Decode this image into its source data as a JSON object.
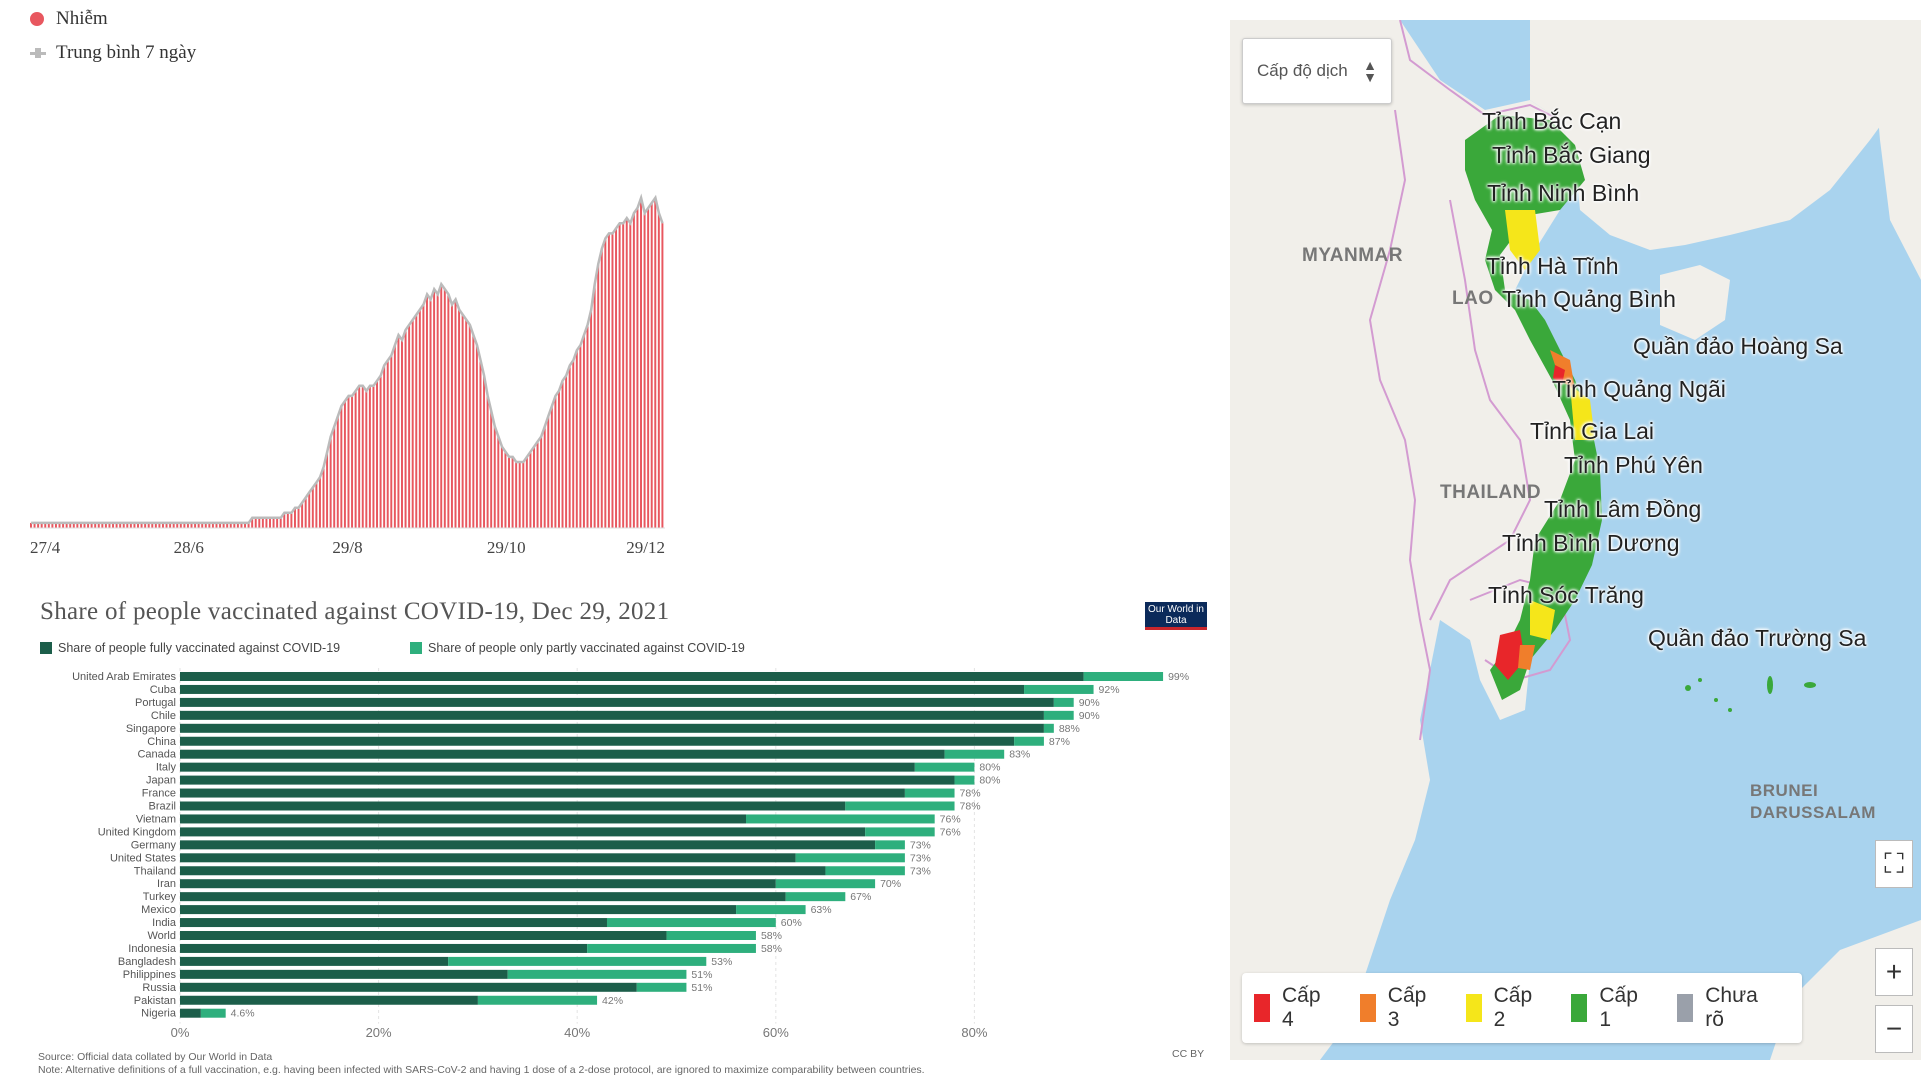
{
  "cases_chart": {
    "legend": {
      "infected": "Nhiễm",
      "avg7": "Trung bình 7 ngày"
    },
    "x_ticks": [
      "27/4",
      "28/6",
      "29/8",
      "29/10",
      "29/12"
    ],
    "colors": {
      "bar": "#e8575f",
      "avg": "#bbbbbb"
    }
  },
  "vaccine_chart": {
    "title": "Share of people vaccinated against COVID-19, Dec 29, 2021",
    "logo": "Our World in Data",
    "legend": {
      "full": "Share of people fully vaccinated against COVID-19",
      "partial": "Share of people only partly vaccinated against COVID-19"
    },
    "source": "Source: Official data collated by Our World in Data",
    "note": "Note: Alternative definitions of a full vaccination, e.g. having been infected with SARS-CoV-2 and having 1 dose of a 2-dose protocol, are ignored to maximize comparability between countries.",
    "license": "CC BY",
    "colors": {
      "full": "#1c5e4a",
      "partial": "#2eaf7d"
    }
  },
  "map": {
    "select_label": "Cấp độ dịch",
    "provinces": [
      "Tỉnh Bắc Cạn",
      "Tỉnh Bắc Giang",
      "Tỉnh Ninh Bình",
      "Tỉnh Hà Tĩnh",
      "Tỉnh Quảng Bình",
      "Quần đảo Hoàng Sa",
      "Tỉnh Quảng Ngãi",
      "Tỉnh Gia Lai",
      "Tỉnh Phú Yên",
      "Tỉnh Lâm Đồng",
      "Tỉnh Bình Dương",
      "Tỉnh Sóc Trăng",
      "Quần đảo Trường Sa"
    ],
    "countries": {
      "myanmar": "MYANMAR",
      "thailand": "THAILAND",
      "lao": "LAO",
      "brunei": "BRUNEI DARUSSALAM"
    },
    "legend": [
      {
        "label": "Cấp 4",
        "color": "#e8262a"
      },
      {
        "label": "Cấp 3",
        "color": "#f07e2b"
      },
      {
        "label": "Cấp 2",
        "color": "#f5e61a"
      },
      {
        "label": "Cấp 1",
        "color": "#3aa83a"
      },
      {
        "label": "Chưa rõ",
        "color": "#9aa0aa"
      }
    ],
    "controls": {
      "fullscreen": "⛶",
      "zoom_in": "+",
      "zoom_out": "−"
    }
  },
  "chart_data": [
    {
      "type": "bar",
      "title": "",
      "legend": [
        "Nhiễm",
        "Trung bình 7 ngày"
      ],
      "x_ticks": [
        "27/4",
        "28/6",
        "29/8",
        "29/10",
        "29/12"
      ],
      "ylim": [
        0,
        100
      ],
      "series": [
        {
          "name": "Nhiễm",
          "values": [
            1,
            1,
            1,
            1,
            1,
            1,
            1,
            1,
            1,
            1,
            1,
            1,
            1,
            1,
            1,
            1,
            1,
            1,
            1,
            1,
            1,
            1,
            1,
            1,
            1,
            1,
            1,
            1,
            1,
            1,
            1,
            1,
            1,
            1,
            1,
            1,
            1,
            1,
            1,
            1,
            1,
            1,
            1,
            1,
            1,
            1,
            1,
            1,
            1,
            1,
            1,
            1,
            1,
            1,
            1,
            1,
            1,
            1,
            1,
            1,
            1,
            1,
            2,
            2,
            2,
            2,
            2,
            2,
            2,
            2,
            2,
            3,
            3,
            3,
            4,
            4,
            5,
            6,
            7,
            8,
            9,
            10,
            12,
            15,
            18,
            20,
            22,
            24,
            25,
            26,
            26,
            27,
            28,
            28,
            27,
            28,
            28,
            29,
            30,
            32,
            33,
            34,
            36,
            38,
            37,
            39,
            40,
            41,
            42,
            43,
            44,
            46,
            45,
            47,
            46,
            48,
            47,
            46,
            44,
            45,
            43,
            42,
            41,
            40,
            38,
            36,
            33,
            30,
            26,
            23,
            20,
            18,
            16,
            15,
            14,
            14,
            13,
            13,
            13,
            14,
            15,
            16,
            17,
            18,
            20,
            22,
            24,
            26,
            27,
            29,
            30,
            32,
            33,
            35,
            36,
            38,
            40,
            43,
            48,
            52,
            55,
            57,
            58,
            58,
            59,
            60,
            60,
            61,
            60,
            62,
            63,
            65,
            62,
            63,
            64,
            65,
            62,
            60
          ]
        },
        {
          "name": "Trung bình 7 ngày",
          "values": [
            1,
            1,
            1,
            1,
            1,
            1,
            1,
            1,
            1,
            1,
            1,
            1,
            1,
            1,
            1,
            1,
            1,
            1,
            1,
            1,
            1,
            1,
            1,
            1,
            1,
            1,
            1,
            1,
            1,
            1,
            1,
            1,
            1,
            1,
            1,
            1,
            1,
            1,
            1,
            1,
            1,
            1,
            1,
            1,
            1,
            1,
            1,
            1,
            1,
            1,
            1,
            1,
            1,
            1,
            1,
            1,
            1,
            1,
            1,
            1,
            1,
            1,
            2,
            2,
            2,
            2,
            2,
            2,
            2,
            2,
            2,
            3,
            3,
            3,
            4,
            4,
            5,
            6,
            7,
            8,
            9,
            10,
            12,
            15,
            18,
            20,
            22,
            24,
            25,
            26,
            26,
            27,
            28,
            28,
            27,
            28,
            28,
            29,
            30,
            32,
            33,
            34,
            36,
            38,
            37,
            39,
            40,
            41,
            42,
            43,
            44,
            46,
            45,
            47,
            46,
            48,
            47,
            46,
            44,
            45,
            43,
            42,
            41,
            40,
            38,
            36,
            33,
            30,
            26,
            23,
            20,
            18,
            16,
            15,
            14,
            14,
            13,
            13,
            13,
            14,
            15,
            16,
            17,
            18,
            20,
            22,
            24,
            26,
            27,
            29,
            30,
            32,
            33,
            35,
            36,
            38,
            40,
            43,
            48,
            52,
            55,
            57,
            58,
            58,
            59,
            60,
            60,
            61,
            60,
            62,
            63,
            65,
            62,
            63,
            64,
            65,
            62,
            60
          ]
        }
      ]
    },
    {
      "type": "bar",
      "title": "Share of people vaccinated against COVID-19, Dec 29, 2021",
      "xlim": [
        0,
        100
      ],
      "x_ticks": [
        "0%",
        "20%",
        "40%",
        "60%",
        "80%"
      ],
      "categories": [
        "United Arab Emirates",
        "Cuba",
        "Portugal",
        "Chile",
        "Singapore",
        "China",
        "Canada",
        "Italy",
        "Japan",
        "France",
        "Brazil",
        "Vietnam",
        "United Kingdom",
        "Germany",
        "United States",
        "Thailand",
        "Iran",
        "Turkey",
        "Mexico",
        "India",
        "World",
        "Indonesia",
        "Bangladesh",
        "Philippines",
        "Russia",
        "Pakistan",
        "Nigeria"
      ],
      "series": [
        {
          "name": "Share of people fully vaccinated against COVID-19",
          "values": [
            91,
            85,
            88,
            87,
            87,
            84,
            77,
            74,
            78,
            73,
            67,
            57,
            69,
            70,
            62,
            65,
            60,
            61,
            56,
            43,
            49,
            41,
            27,
            33,
            46,
            30,
            2.1
          ]
        },
        {
          "name": "Share of people only partly vaccinated against COVID-19",
          "values": [
            8,
            7,
            2,
            3,
            1,
            3,
            6,
            6,
            2,
            5,
            11,
            19,
            7,
            3,
            11,
            8,
            10,
            6,
            7,
            17,
            9,
            17,
            26,
            18,
            5,
            12,
            2.5
          ]
        }
      ],
      "totals": [
        "99%",
        "92%",
        "90%",
        "90%",
        "88%",
        "87%",
        "83%",
        "80%",
        "80%",
        "78%",
        "78%",
        "76%",
        "76%",
        "73%",
        "73%",
        "73%",
        "70%",
        "67%",
        "63%",
        "60%",
        "58%",
        "58%",
        "53%",
        "51%",
        "51%",
        "42%",
        "4.6%"
      ]
    }
  ]
}
